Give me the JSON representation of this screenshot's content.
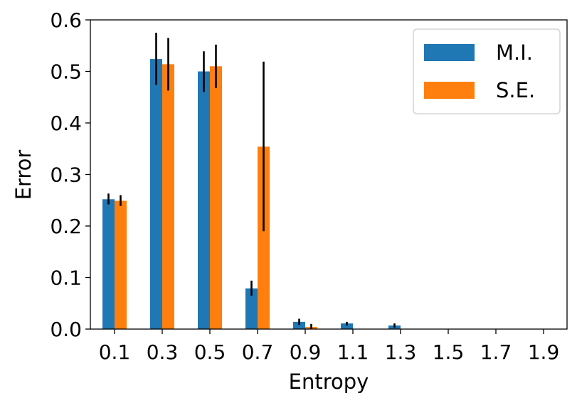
{
  "colors": {
    "mi": "#1f77b4",
    "se": "#ff7f0e",
    "error_bar": "#000000"
  },
  "chart_data": {
    "type": "bar",
    "title": "",
    "xlabel": "Entropy",
    "ylabel": "Error",
    "categories": [
      "0.1",
      "0.3",
      "0.5",
      "0.7",
      "0.9",
      "1.1",
      "1.3",
      "1.5",
      "1.7",
      "1.9"
    ],
    "ylim": [
      0,
      0.6
    ],
    "yticks": [
      "0.0",
      "0.1",
      "0.2",
      "0.3",
      "0.4",
      "0.5",
      "0.6"
    ],
    "grid": false,
    "legend_position": "top-right",
    "series": [
      {
        "name": "M.I.",
        "color": "#1f77b4",
        "values": [
          0.252,
          0.524,
          0.5,
          0.079,
          0.014,
          0.011,
          0.007,
          0,
          0,
          0
        ],
        "error_low": [
          0.242,
          0.474,
          0.46,
          0.065,
          0.008,
          0.007,
          0.003,
          0,
          0,
          0
        ],
        "error_high": [
          0.263,
          0.575,
          0.539,
          0.094,
          0.02,
          0.014,
          0.011,
          0,
          0,
          0
        ]
      },
      {
        "name": "S.E.",
        "color": "#ff7f0e",
        "values": [
          0.249,
          0.514,
          0.51,
          0.354,
          0.004,
          0,
          0,
          0,
          0,
          0
        ],
        "error_low": [
          0.239,
          0.463,
          0.468,
          0.19,
          0.0,
          0,
          0,
          0,
          0,
          0
        ],
        "error_high": [
          0.26,
          0.565,
          0.552,
          0.519,
          0.01,
          0,
          0,
          0,
          0,
          0
        ]
      }
    ]
  }
}
